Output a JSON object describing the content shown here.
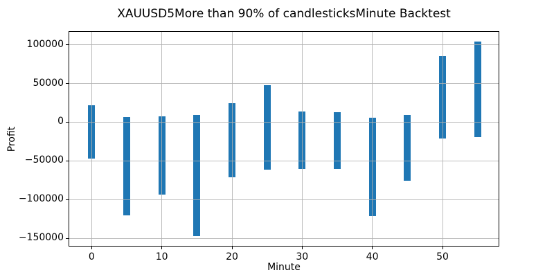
{
  "chart_data": {
    "type": "bar",
    "variant": "floating-range-bars",
    "title": "XAUUSD5More than 90% of candlesticksMinute Backtest",
    "xlabel": "Minute",
    "ylabel": "Profit",
    "categories": [
      0,
      5,
      10,
      15,
      20,
      25,
      30,
      35,
      40,
      45,
      50,
      55
    ],
    "series": [
      {
        "name": "profit-range",
        "top": [
          22000,
          7000,
          8000,
          9000,
          25000,
          48000,
          14000,
          13000,
          6000,
          9000,
          85000,
          104000
        ],
        "bottom": [
          -47000,
          -120000,
          -93000,
          -147000,
          -71000,
          -61000,
          -60000,
          -60000,
          -121000,
          -76000,
          -21000,
          -19000
        ]
      }
    ],
    "xticks": {
      "values": [
        0,
        10,
        20,
        30,
        40,
        50
      ],
      "labels": [
        "0",
        "10",
        "20",
        "30",
        "40",
        "50"
      ]
    },
    "yticks": {
      "values": [
        100000,
        50000,
        0,
        -50000,
        -100000,
        -150000
      ],
      "labels": [
        "100000",
        "50000",
        "0",
        "−50000",
        "−100000",
        "−150000"
      ]
    },
    "xlim": [
      -3.2,
      58.0
    ],
    "ylim": [
      -159550,
      116550
    ],
    "grid": true,
    "grid_axis_below_bars": false,
    "legend": "none",
    "bar_width": 1,
    "colors": {
      "bar": "#1f77b4",
      "grid": "#b0b0b0",
      "spine": "#000000",
      "text": "#000000",
      "background": "#ffffff"
    }
  }
}
